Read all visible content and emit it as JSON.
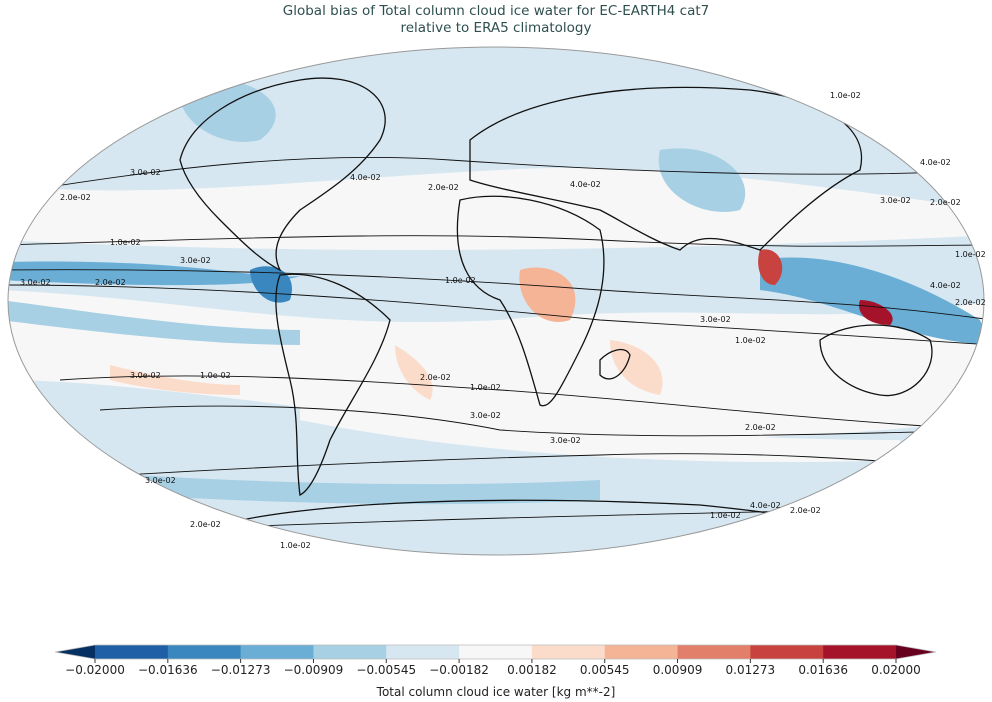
{
  "title": {
    "line1": "Global bias of Total column cloud ice water for EC-EARTH4 cat7",
    "line2": "relative to ERA5 climatology"
  },
  "map": {
    "projection": "Robinson",
    "field": "bias",
    "contour_labels": [
      "1.0e-02",
      "2.0e-02",
      "3.0e-02",
      "4.0e-02"
    ]
  },
  "colorbar": {
    "label": "Total column cloud ice water [kg m**-2]",
    "ticks": [
      "−0.02000",
      "−0.01636",
      "−0.01273",
      "−0.00909",
      "−0.00545",
      "−0.00182",
      "0.00182",
      "0.00545",
      "0.00909",
      "0.01273",
      "0.01636",
      "0.02000"
    ],
    "colors": [
      "#1f5fa6",
      "#3a87c0",
      "#6aaed6",
      "#a8d0e4",
      "#d6e7f1",
      "#f7f7f7",
      "#fbdccb",
      "#f5b496",
      "#e27f6a",
      "#c8433f",
      "#a5132a"
    ],
    "under_color": "#053061",
    "over_color": "#67001f",
    "extend": "both"
  }
}
